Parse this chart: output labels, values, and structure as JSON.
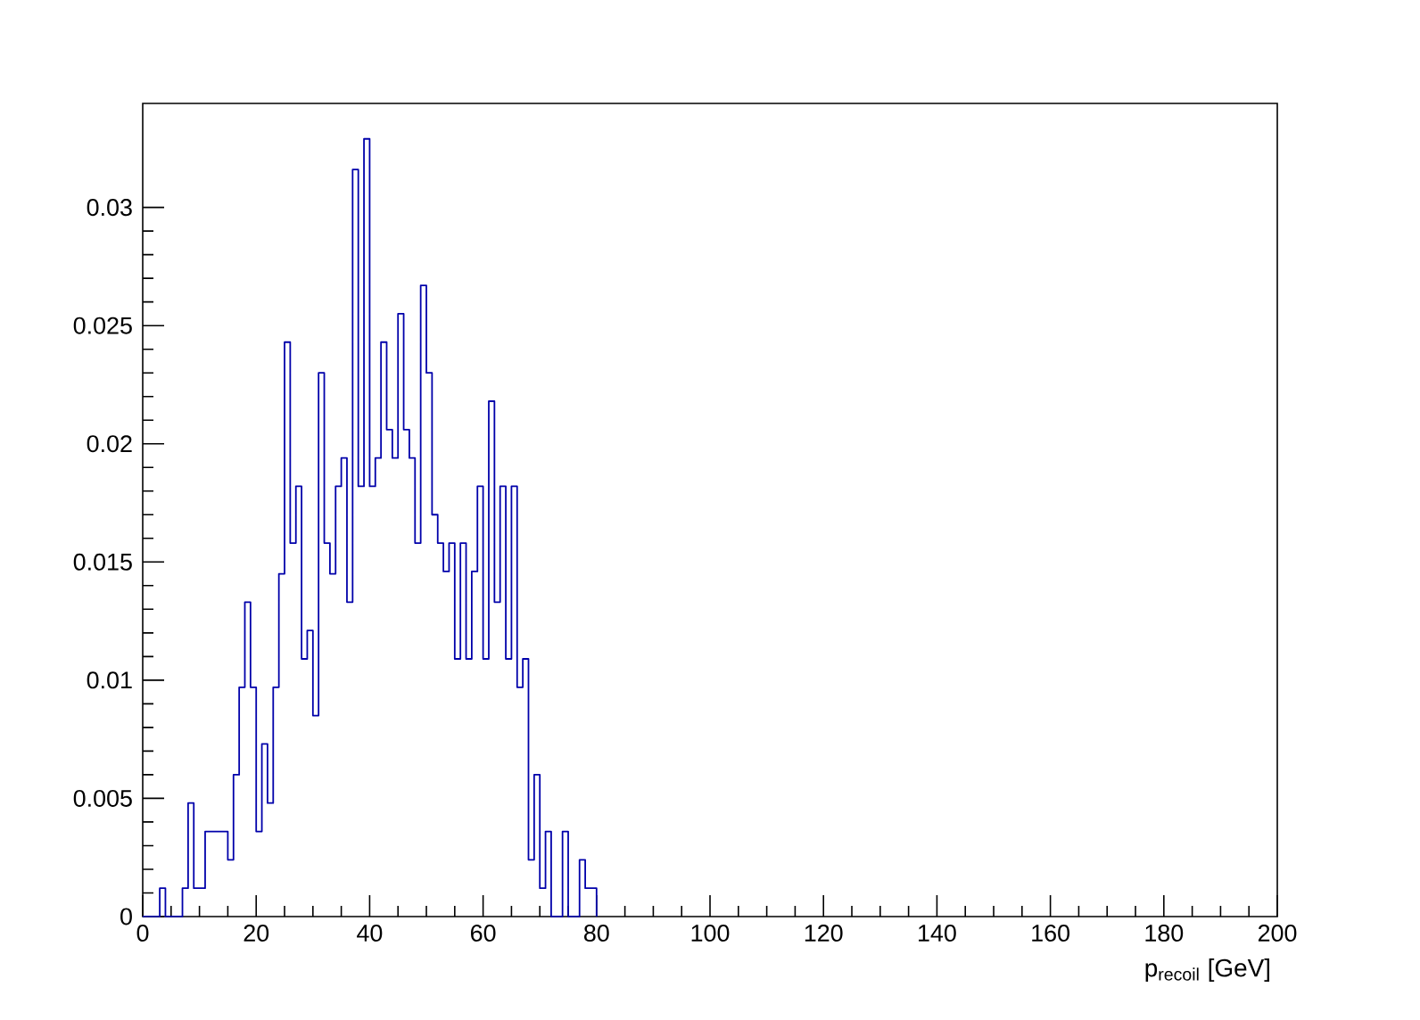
{
  "chart_data": {
    "type": "histogram",
    "xlabel": "p$_{recoil}$ [GeV]",
    "bins": [
      0,
      1,
      2,
      3,
      4,
      5,
      6,
      7,
      8,
      9,
      10,
      11,
      12,
      13,
      14,
      15,
      16,
      17,
      18,
      19,
      20,
      21,
      22,
      23,
      24,
      25,
      26,
      27,
      28,
      29,
      30,
      31,
      32,
      33,
      34,
      35,
      36,
      37,
      38,
      39,
      40,
      41,
      42,
      43,
      44,
      45,
      46,
      47,
      48,
      49,
      50,
      51,
      52,
      53,
      54,
      55,
      56,
      57,
      58,
      59,
      60,
      61,
      62,
      63,
      64,
      65,
      66,
      67,
      68,
      69,
      70,
      71,
      72,
      73,
      74,
      75,
      76,
      77,
      78,
      79,
      80
    ],
    "values": [
      0,
      0,
      0,
      0.0012,
      0,
      0,
      0,
      0.0012,
      0.0048,
      0.0012,
      0.0012,
      0.0036,
      0.0036,
      0.0036,
      0.0036,
      0.0024,
      0.006,
      0.0097,
      0.0133,
      0.0097,
      0.0036,
      0.0073,
      0.0048,
      0.0097,
      0.0145,
      0.0243,
      0.0158,
      0.0182,
      0.0109,
      0.0121,
      0.0085,
      0.023,
      0.0158,
      0.0145,
      0.0182,
      0.0194,
      0.0133,
      0.0316,
      0.0182,
      0.0329,
      0.0182,
      0.0194,
      0.0243,
      0.0206,
      0.0194,
      0.0255,
      0.0206,
      0.0194,
      0.0158,
      0.0267,
      0.023,
      0.017,
      0.0158,
      0.0146,
      0.0158,
      0.0109,
      0.0158,
      0.0109,
      0.0146,
      0.0182,
      0.0109,
      0.0218,
      0.0133,
      0.0182,
      0.0109,
      0.0182,
      0.0097,
      0.0109,
      0.0024,
      0.006,
      0.0012,
      0.0036,
      0,
      0,
      0.0036,
      0,
      0,
      0.0024,
      0.0012,
      0.0012
    ],
    "color": "#0000aa",
    "xlim": [
      0,
      200
    ],
    "ylim": [
      0,
      0.0344
    ],
    "xticks": [
      0,
      20,
      40,
      60,
      80,
      100,
      120,
      140,
      160,
      180,
      200
    ],
    "yticks": [
      0,
      0.005,
      0.01,
      0.015,
      0.02,
      0.025,
      0.03
    ]
  }
}
